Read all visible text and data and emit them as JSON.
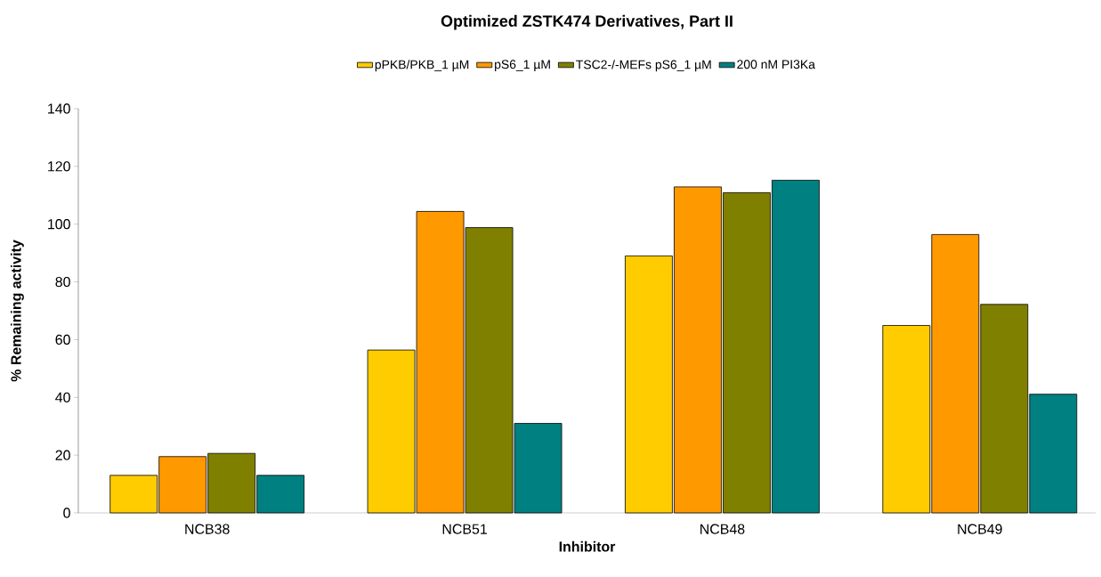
{
  "chart_data": {
    "type": "bar",
    "title": "Optimized ZSTK474 Derivatives, Part II",
    "xlabel": "Inhibitor",
    "ylabel": "% Remaining activity",
    "categories": [
      "NCB38",
      "NCB51",
      "NCB48",
      "NCB49"
    ],
    "series": [
      {
        "name": "pPKB/PKB_1 µM",
        "color": "#ffcc00",
        "values": [
          13.0,
          56.4,
          89.0,
          64.9
        ]
      },
      {
        "name": "pS6_1 µM",
        "color": "#ff9900",
        "values": [
          19.5,
          104.4,
          112.9,
          96.4
        ]
      },
      {
        "name": "TSC2-/-MEFs pS6_1 µM",
        "color": "#808000",
        "values": [
          20.6,
          98.8,
          110.9,
          72.2
        ]
      },
      {
        "name": "200 nM PI3Ka",
        "color": "#008080",
        "values": [
          13.0,
          31.0,
          115.2,
          41.1
        ]
      }
    ],
    "ylim": [
      0,
      140
    ],
    "yticks": [
      0,
      20,
      40,
      60,
      80,
      100,
      120,
      140
    ],
    "grid": false,
    "legend": "top"
  }
}
